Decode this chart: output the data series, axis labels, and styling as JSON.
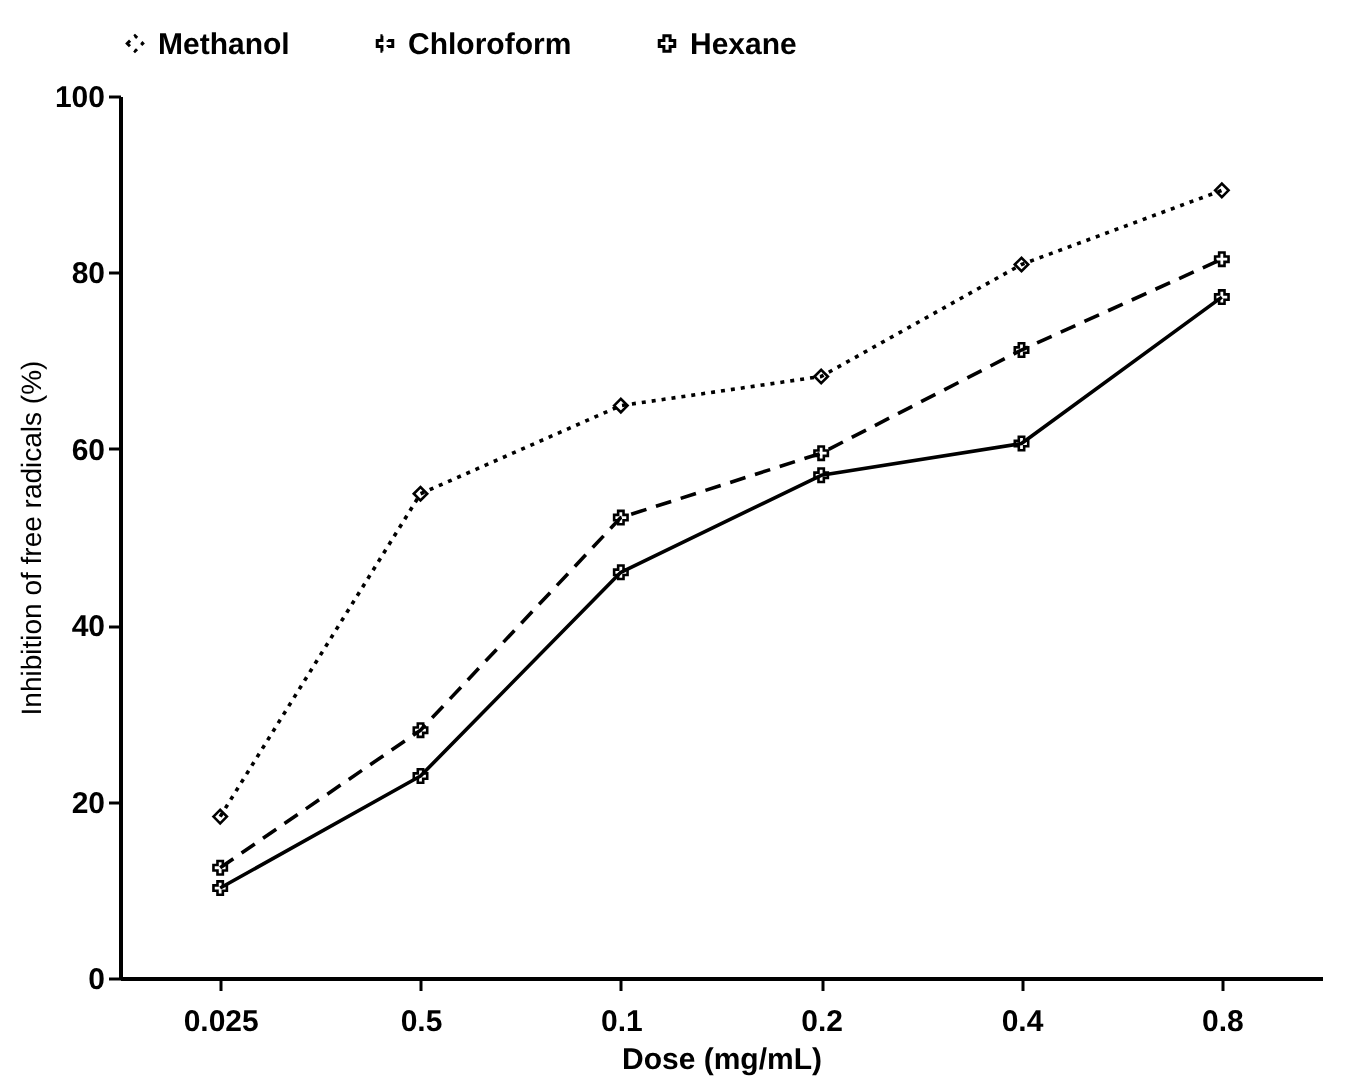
{
  "chart_data": {
    "type": "line",
    "xlabel": "Dose (mg/mL)",
    "ylabel": "Inhibition of free radicals (%)",
    "categories": [
      "0.025",
      "0.5",
      "0.1",
      "0.2",
      "0.4",
      "0.8"
    ],
    "series": [
      {
        "name": "Methanol",
        "color": "#000000",
        "marker": "diamond",
        "line_style": "dotted",
        "values": [
          18.3,
          54.9,
          64.9,
          68.2,
          80.9,
          89.3
        ]
      },
      {
        "name": "Chloroform",
        "color": "#000000",
        "marker": "cross",
        "line_style": "dashed",
        "values": [
          12.5,
          28.1,
          52.2,
          59.5,
          71.2,
          81.5
        ]
      },
      {
        "name": "Hexane",
        "color": "#000000",
        "marker": "cross",
        "line_style": "solid",
        "values": [
          10.2,
          22.9,
          46,
          57,
          60.6,
          77.2
        ]
      }
    ],
    "ylim": [
      0,
      100
    ],
    "yticks": [
      0,
      20,
      40,
      60,
      80,
      100
    ],
    "grid": false,
    "legend": "top"
  }
}
